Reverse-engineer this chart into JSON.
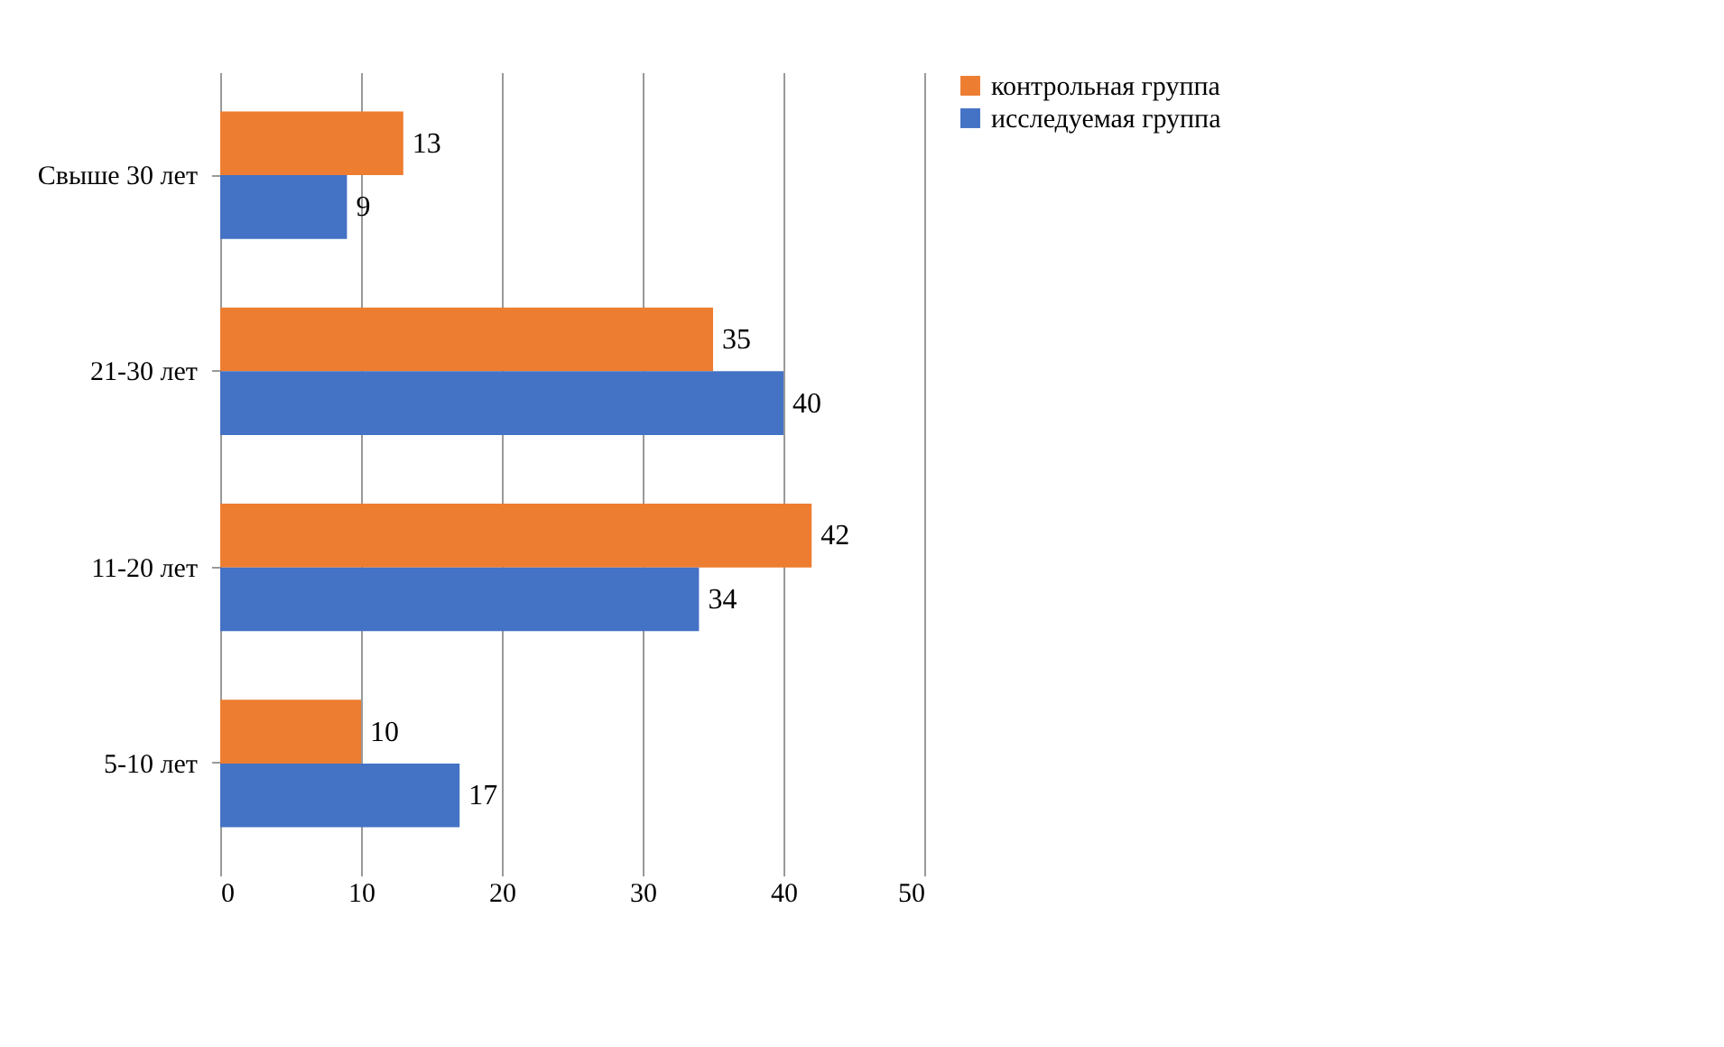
{
  "chart_data": {
    "type": "bar",
    "orientation": "horizontal",
    "categories": [
      "Свыше 30 лет",
      "21-30 лет",
      "11-20 лет",
      "5-10 лет"
    ],
    "series": [
      {
        "name": "контрольная группа",
        "color": "#ed7d31",
        "values": [
          13,
          35,
          42,
          10
        ]
      },
      {
        "name": "исследуемая группа",
        "color": "#4472c4",
        "values": [
          9,
          40,
          34,
          17
        ]
      }
    ],
    "xlim": [
      0,
      50
    ],
    "xticks": [
      0,
      10,
      20,
      30,
      40,
      50
    ],
    "grid": "x",
    "legend": "right",
    "data_labels": true
  }
}
